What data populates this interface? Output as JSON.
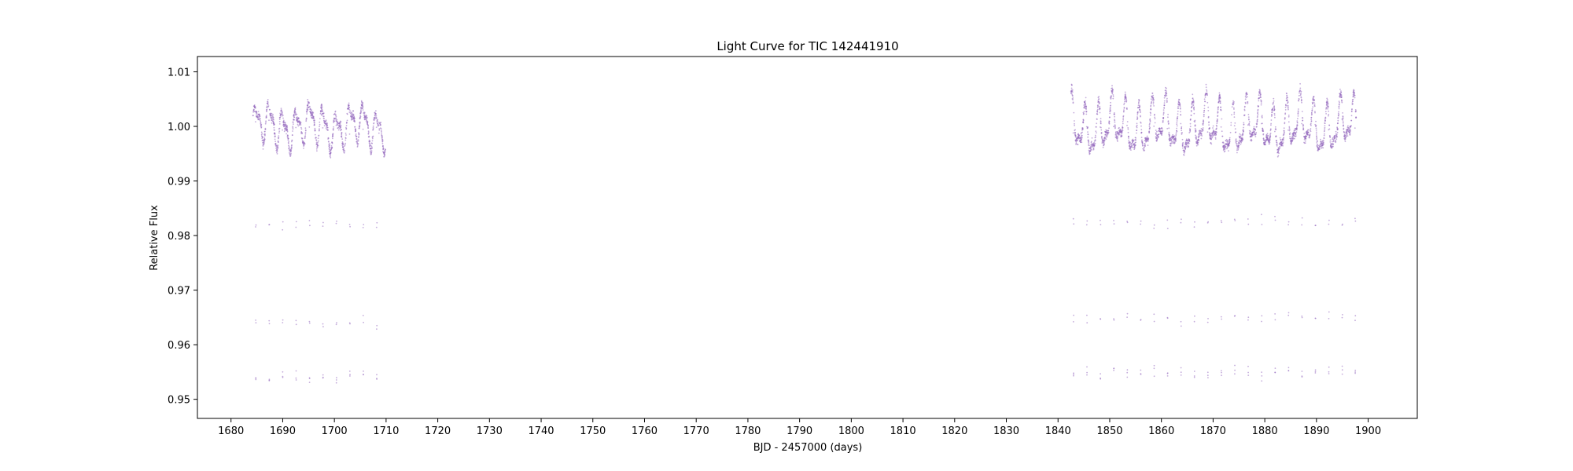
{
  "chart_data": {
    "type": "scatter",
    "title": "Light Curve for TIC 142441910",
    "xlabel": "BJD - 2457000 (days)",
    "ylabel": "Relative Flux",
    "xlim": [
      1673.5,
      1909.5
    ],
    "ylim": [
      0.9465,
      1.0128
    ],
    "xticks": [
      1680,
      1690,
      1700,
      1710,
      1720,
      1730,
      1740,
      1750,
      1760,
      1770,
      1780,
      1790,
      1800,
      1810,
      1820,
      1830,
      1840,
      1850,
      1860,
      1870,
      1880,
      1890,
      1900
    ],
    "yticks": [
      0.95,
      0.96,
      0.97,
      0.98,
      0.99,
      1.0,
      1.01
    ],
    "ytick_labels": [
      "0.95",
      "0.96",
      "0.97",
      "0.98",
      "0.99",
      "1.00",
      "1.01"
    ],
    "grid": false,
    "legend": "none",
    "series": [
      {
        "color": "#9467bd",
        "segments": [
          {
            "x_range": [
              1684.2,
              1709.9
            ],
            "baseline": 1.0,
            "variability_amplitude": 0.004,
            "eclipse_depth_flux": 0.954,
            "eclipse_times": [
              1684.8,
              1687.4,
              1690.0,
              1692.6,
              1695.2,
              1697.8,
              1700.4,
              1703.0,
              1705.6,
              1708.2
            ]
          },
          {
            "x_range": [
              1842.5,
              1897.7
            ],
            "baseline": 1.0,
            "variability_amplitude": 0.005,
            "eclipse_depth_flux": 0.955,
            "eclipse_times": [
              1843.0,
              1845.6,
              1848.2,
              1850.8,
              1853.4,
              1856.0,
              1858.6,
              1861.2,
              1863.8,
              1866.4,
              1869.0,
              1871.6,
              1874.2,
              1876.8,
              1879.4,
              1882.0,
              1884.6,
              1887.2,
              1889.8,
              1892.4,
              1895.0,
              1897.5
            ]
          }
        ]
      }
    ]
  }
}
